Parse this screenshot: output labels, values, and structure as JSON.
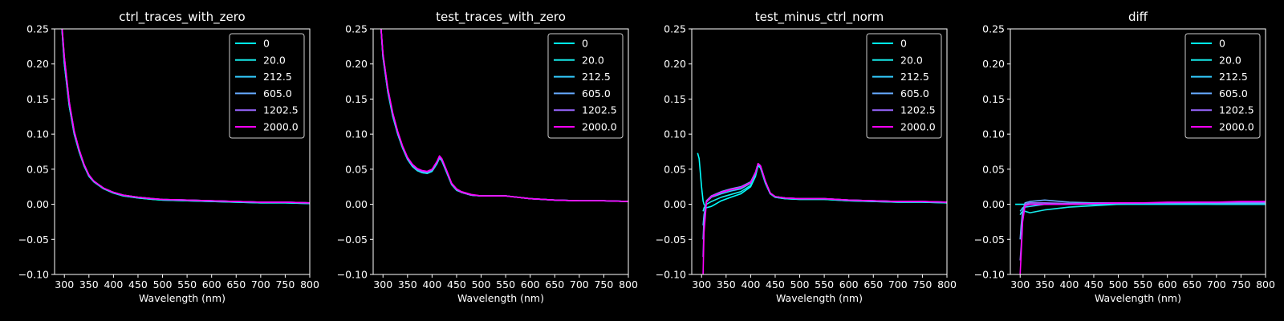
{
  "figure": {
    "background": "#000000",
    "foreground": "#ffffff",
    "legend_labels": [
      "0",
      "20.0",
      "212.5",
      "605.0",
      "1202.5",
      "2000.0"
    ],
    "series_colors": [
      "#00ffff",
      "#17e9e9",
      "#33ccff",
      "#66aaff",
      "#9966ff",
      "#ff00ff"
    ]
  },
  "chart_data": [
    {
      "type": "line",
      "title": "ctrl_traces_with_zero",
      "xlabel": "Wavelength (nm)",
      "ylabel": "",
      "xlim": [
        280,
        800
      ],
      "ylim": [
        -0.1,
        0.25
      ],
      "xticks": [
        300,
        350,
        400,
        450,
        500,
        550,
        600,
        650,
        700,
        750,
        800
      ],
      "xtick_labels": [
        "300",
        "350",
        "400",
        "450",
        "500",
        "550",
        "600",
        "650",
        "700",
        "750",
        "800"
      ],
      "yticks": [
        -0.1,
        -0.05,
        0,
        0.05,
        0.1,
        0.15,
        0.2,
        0.25
      ],
      "ytick_labels": [
        "−0.10",
        "−0.05",
        "0.00",
        "0.05",
        "0.10",
        "0.15",
        "0.20",
        "0.25"
      ],
      "grid": false,
      "legend": "top-right",
      "x": [
        290,
        300,
        310,
        320,
        330,
        340,
        350,
        360,
        370,
        380,
        400,
        420,
        450,
        480,
        500,
        550,
        600,
        650,
        700,
        750,
        800
      ],
      "series": [
        {
          "name": "0",
          "values": [
            0.3,
            0.2,
            0.14,
            0.1,
            0.075,
            0.055,
            0.04,
            0.032,
            0.027,
            0.022,
            0.016,
            0.012,
            0.009,
            0.007,
            0.006,
            0.005,
            0.004,
            0.003,
            0.002,
            0.002,
            0.001
          ]
        },
        {
          "name": "20.0",
          "values": [
            0.3,
            0.2,
            0.14,
            0.1,
            0.075,
            0.055,
            0.04,
            0.032,
            0.027,
            0.022,
            0.016,
            0.012,
            0.009,
            0.007,
            0.006,
            0.005,
            0.004,
            0.003,
            0.002,
            0.002,
            0.001
          ]
        },
        {
          "name": "212.5",
          "values": [
            0.3,
            0.205,
            0.143,
            0.102,
            0.077,
            0.056,
            0.041,
            0.033,
            0.028,
            0.023,
            0.017,
            0.013,
            0.01,
            0.008,
            0.007,
            0.006,
            0.005,
            0.004,
            0.003,
            0.003,
            0.002
          ]
        },
        {
          "name": "605.0",
          "values": [
            0.3,
            0.205,
            0.143,
            0.102,
            0.077,
            0.056,
            0.041,
            0.033,
            0.028,
            0.023,
            0.017,
            0.013,
            0.01,
            0.008,
            0.007,
            0.006,
            0.005,
            0.004,
            0.003,
            0.003,
            0.002
          ]
        },
        {
          "name": "1202.5",
          "values": [
            0.3,
            0.21,
            0.146,
            0.104,
            0.078,
            0.057,
            0.042,
            0.033,
            0.028,
            0.023,
            0.017,
            0.013,
            0.01,
            0.008,
            0.007,
            0.006,
            0.005,
            0.004,
            0.003,
            0.003,
            0.002
          ]
        },
        {
          "name": "2000.0",
          "values": [
            0.3,
            0.21,
            0.146,
            0.104,
            0.078,
            0.057,
            0.042,
            0.033,
            0.028,
            0.023,
            0.017,
            0.013,
            0.01,
            0.008,
            0.007,
            0.006,
            0.005,
            0.004,
            0.003,
            0.003,
            0.002
          ]
        }
      ]
    },
    {
      "type": "line",
      "title": "test_traces_with_zero",
      "xlabel": "Wavelength (nm)",
      "ylabel": "",
      "xlim": [
        280,
        800
      ],
      "ylim": [
        -0.1,
        0.25
      ],
      "xticks": [
        300,
        350,
        400,
        450,
        500,
        550,
        600,
        650,
        700,
        750,
        800
      ],
      "xtick_labels": [
        "300",
        "350",
        "400",
        "450",
        "500",
        "550",
        "600",
        "650",
        "700",
        "750",
        "800"
      ],
      "yticks": [
        -0.1,
        -0.05,
        0,
        0.05,
        0.1,
        0.15,
        0.2,
        0.25
      ],
      "ytick_labels": [
        "−0.10",
        "−0.05",
        "0.00",
        "0.05",
        "0.10",
        "0.15",
        "0.20",
        "0.25"
      ],
      "grid": false,
      "legend": "top-right",
      "x": [
        295,
        300,
        310,
        320,
        330,
        340,
        350,
        360,
        370,
        380,
        390,
        400,
        410,
        415,
        420,
        430,
        440,
        450,
        460,
        480,
        500,
        550,
        600,
        650,
        700,
        750,
        800
      ],
      "series": [
        {
          "name": "0",
          "values": [
            0.26,
            0.21,
            0.16,
            0.125,
            0.1,
            0.08,
            0.064,
            0.054,
            0.048,
            0.045,
            0.044,
            0.047,
            0.058,
            0.066,
            0.062,
            0.045,
            0.028,
            0.02,
            0.017,
            0.013,
            0.012,
            0.012,
            0.008,
            0.006,
            0.005,
            0.005,
            0.004
          ]
        },
        {
          "name": "20.0",
          "values": [
            0.26,
            0.21,
            0.16,
            0.125,
            0.1,
            0.08,
            0.064,
            0.054,
            0.048,
            0.045,
            0.044,
            0.047,
            0.058,
            0.066,
            0.062,
            0.045,
            0.028,
            0.02,
            0.017,
            0.013,
            0.012,
            0.012,
            0.008,
            0.006,
            0.005,
            0.005,
            0.004
          ]
        },
        {
          "name": "212.5",
          "values": [
            0.26,
            0.212,
            0.162,
            0.127,
            0.101,
            0.081,
            0.065,
            0.055,
            0.049,
            0.046,
            0.045,
            0.048,
            0.059,
            0.067,
            0.063,
            0.046,
            0.029,
            0.021,
            0.017,
            0.013,
            0.012,
            0.012,
            0.008,
            0.006,
            0.005,
            0.005,
            0.004
          ]
        },
        {
          "name": "605.0",
          "values": [
            0.26,
            0.213,
            0.163,
            0.128,
            0.102,
            0.082,
            0.066,
            0.056,
            0.05,
            0.047,
            0.046,
            0.049,
            0.06,
            0.068,
            0.064,
            0.047,
            0.029,
            0.021,
            0.017,
            0.013,
            0.012,
            0.012,
            0.008,
            0.006,
            0.005,
            0.005,
            0.004
          ]
        },
        {
          "name": "1202.5",
          "values": [
            0.26,
            0.214,
            0.164,
            0.129,
            0.103,
            0.082,
            0.066,
            0.056,
            0.05,
            0.047,
            0.046,
            0.049,
            0.06,
            0.068,
            0.064,
            0.047,
            0.029,
            0.021,
            0.017,
            0.013,
            0.012,
            0.012,
            0.008,
            0.006,
            0.005,
            0.005,
            0.004
          ]
        },
        {
          "name": "2000.0",
          "values": [
            0.26,
            0.215,
            0.165,
            0.13,
            0.104,
            0.083,
            0.067,
            0.057,
            0.051,
            0.048,
            0.047,
            0.05,
            0.061,
            0.069,
            0.065,
            0.048,
            0.03,
            0.022,
            0.018,
            0.014,
            0.012,
            0.012,
            0.008,
            0.006,
            0.005,
            0.005,
            0.004
          ]
        }
      ]
    },
    {
      "type": "line",
      "title": "test_minus_ctrl_norm",
      "xlabel": "Wavelength (nm)",
      "ylabel": "",
      "xlim": [
        280,
        800
      ],
      "ylim": [
        -0.1,
        0.25
      ],
      "xticks": [
        300,
        350,
        400,
        450,
        500,
        550,
        600,
        650,
        700,
        750,
        800
      ],
      "xtick_labels": [
        "300",
        "350",
        "400",
        "450",
        "500",
        "550",
        "600",
        "650",
        "700",
        "750",
        "800"
      ],
      "yticks": [
        -0.1,
        -0.05,
        0,
        0.05,
        0.1,
        0.15,
        0.2,
        0.25
      ],
      "ytick_labels": [
        "−0.10",
        "−0.05",
        "0.00",
        "0.05",
        "0.10",
        "0.15",
        "0.20",
        "0.25"
      ],
      "grid": false,
      "legend": "top-right",
      "x": [
        292,
        295,
        300,
        303,
        305,
        310,
        320,
        340,
        360,
        380,
        400,
        410,
        415,
        420,
        430,
        440,
        450,
        470,
        500,
        550,
        600,
        650,
        700,
        750,
        800
      ],
      "series": [
        {
          "name": "0",
          "values": [
            0.073,
            0.065,
            0.025,
            0.005,
            0.0,
            -0.005,
            -0.003,
            0.005,
            0.01,
            0.015,
            0.025,
            0.04,
            0.055,
            0.052,
            0.03,
            0.015,
            0.01,
            0.008,
            0.007,
            0.007,
            0.005,
            0.004,
            0.003,
            0.003,
            0.002
          ]
        },
        {
          "name": "20.0",
          "values": [
            null,
            null,
            null,
            -0.01,
            -0.005,
            0.0,
            0.004,
            0.01,
            0.014,
            0.018,
            0.027,
            0.042,
            0.056,
            0.053,
            0.031,
            0.015,
            0.01,
            0.008,
            0.007,
            0.007,
            0.005,
            0.004,
            0.003,
            0.003,
            0.002
          ]
        },
        {
          "name": "212.5",
          "values": [
            null,
            null,
            null,
            -0.03,
            -0.015,
            0.003,
            0.01,
            0.015,
            0.019,
            0.022,
            0.03,
            0.044,
            0.057,
            0.054,
            0.032,
            0.016,
            0.011,
            0.009,
            0.008,
            0.008,
            0.006,
            0.005,
            0.004,
            0.004,
            0.003
          ]
        },
        {
          "name": "605.0",
          "values": [
            null,
            null,
            null,
            -0.05,
            -0.02,
            0.005,
            0.012,
            0.018,
            0.022,
            0.025,
            0.032,
            0.046,
            0.058,
            0.055,
            0.033,
            0.016,
            0.011,
            0.009,
            0.008,
            0.008,
            0.006,
            0.005,
            0.004,
            0.004,
            0.003
          ]
        },
        {
          "name": "1202.5",
          "values": [
            null,
            null,
            null,
            -0.075,
            -0.03,
            0.004,
            0.012,
            0.017,
            0.021,
            0.024,
            0.031,
            0.045,
            0.058,
            0.055,
            0.033,
            0.016,
            0.011,
            0.009,
            0.008,
            0.008,
            0.006,
            0.005,
            0.004,
            0.004,
            0.003
          ]
        },
        {
          "name": "2000.0",
          "values": [
            null,
            null,
            null,
            -0.1,
            -0.04,
            0.003,
            0.011,
            0.017,
            0.021,
            0.024,
            0.031,
            0.045,
            0.058,
            0.055,
            0.033,
            0.016,
            0.011,
            0.009,
            0.008,
            0.008,
            0.006,
            0.005,
            0.004,
            0.004,
            0.003
          ]
        }
      ]
    },
    {
      "type": "line",
      "title": "diff",
      "xlabel": "Wavelength (nm)",
      "ylabel": "",
      "xlim": [
        280,
        800
      ],
      "ylim": [
        -0.1,
        0.25
      ],
      "xticks": [
        300,
        350,
        400,
        450,
        500,
        550,
        600,
        650,
        700,
        750,
        800
      ],
      "xtick_labels": [
        "300",
        "350",
        "400",
        "450",
        "500",
        "550",
        "600",
        "650",
        "700",
        "750",
        "800"
      ],
      "yticks": [
        -0.1,
        -0.05,
        0,
        0.05,
        0.1,
        0.15,
        0.2,
        0.25
      ],
      "ytick_labels": [
        "−0.10",
        "−0.05",
        "0.00",
        "0.05",
        "0.10",
        "0.15",
        "0.20",
        "0.25"
      ],
      "grid": false,
      "legend": "top-right",
      "x": [
        290,
        300,
        302,
        305,
        310,
        320,
        350,
        400,
        450,
        500,
        550,
        600,
        650,
        700,
        750,
        800
      ],
      "series": [
        {
          "name": "0",
          "values": [
            0.0,
            0.0,
            0.0,
            0.0,
            0.0,
            0.0,
            0.0,
            0.0,
            0.0,
            0.0,
            0.0,
            0.0,
            0.0,
            0.0,
            0.0,
            0.0
          ]
        },
        {
          "name": "20.0",
          "values": [
            null,
            -0.015,
            -0.012,
            -0.01,
            -0.01,
            -0.012,
            -0.008,
            -0.004,
            -0.002,
            0.0,
            0.001,
            0.001,
            0.001,
            0.0,
            0.0,
            0.0
          ]
        },
        {
          "name": "212.5",
          "values": [
            null,
            -0.01,
            -0.008,
            -0.005,
            -0.004,
            -0.003,
            0.0,
            0.001,
            0.001,
            0.001,
            0.001,
            0.001,
            0.001,
            0.001,
            0.001,
            0.001
          ]
        },
        {
          "name": "605.0",
          "values": [
            null,
            -0.05,
            -0.03,
            -0.01,
            0.002,
            0.004,
            0.006,
            0.003,
            0.002,
            0.002,
            0.002,
            0.002,
            0.002,
            0.002,
            0.002,
            0.002
          ]
        },
        {
          "name": "1202.5",
          "values": [
            null,
            -0.08,
            -0.06,
            -0.02,
            0.0,
            0.002,
            0.002,
            0.001,
            0.001,
            0.002,
            0.002,
            0.002,
            0.003,
            0.003,
            0.003,
            0.003
          ]
        },
        {
          "name": "2000.0",
          "values": [
            null,
            -0.1,
            -0.07,
            -0.025,
            -0.002,
            0.0,
            0.0,
            0.0,
            0.001,
            0.002,
            0.002,
            0.003,
            0.003,
            0.003,
            0.004,
            0.004
          ]
        }
      ]
    }
  ]
}
